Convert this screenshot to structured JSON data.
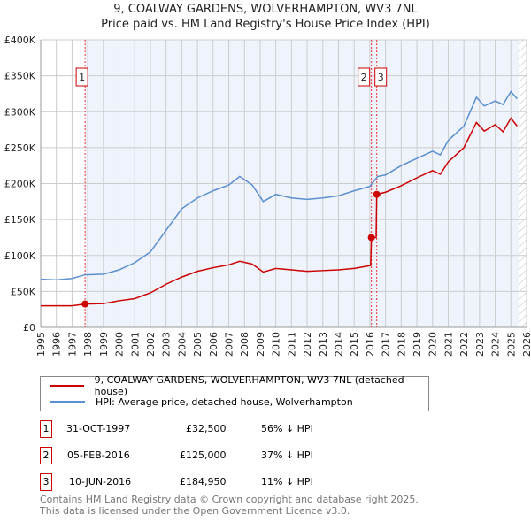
{
  "chart_data": {
    "type": "line",
    "title": "9, COALWAY GARDENS, WOLVERHAMPTON, WV3 7NL",
    "subtitle": "Price paid vs. HM Land Registry's House Price Index (HPI)",
    "xlim": [
      1995,
      2026
    ],
    "ylim": [
      0,
      400000
    ],
    "x_ticks": [
      "1995",
      "1996",
      "1997",
      "1998",
      "1999",
      "2000",
      "2001",
      "2002",
      "2003",
      "2004",
      "2005",
      "2006",
      "2007",
      "2008",
      "2009",
      "2010",
      "2011",
      "2012",
      "2013",
      "2014",
      "2015",
      "2016",
      "2017",
      "2018",
      "2019",
      "2020",
      "2021",
      "2022",
      "2023",
      "2024",
      "2025",
      "2026"
    ],
    "y_ticks": [
      "£0",
      "£50K",
      "£100K",
      "£150K",
      "£200K",
      "£250K",
      "£300K",
      "£350K",
      "£400K"
    ],
    "grid": true,
    "series": [
      {
        "name": "9, COALWAY GARDENS, WOLVERHAMPTON, WV3 7NL (detached house)",
        "color": "#cc0000",
        "x": [
          1995,
          1997,
          1997.83,
          1999,
          2000,
          2001,
          2002,
          2003,
          2004,
          2005,
          2006,
          2007,
          2007.7,
          2008.5,
          2009.2,
          2010,
          2011,
          2012,
          2013,
          2014,
          2015,
          2016.05,
          2016.1,
          2016.4,
          2016.44,
          2017,
          2018,
          2019,
          2020,
          2020.5,
          2021,
          2022,
          2022.8,
          2023.3,
          2024,
          2024.5,
          2025,
          2025.4
        ],
        "y": [
          30000,
          30000,
          32500,
          33000,
          37000,
          40000,
          48000,
          60000,
          70000,
          78000,
          83000,
          87000,
          92000,
          88000,
          77000,
          82000,
          80000,
          78000,
          79000,
          80000,
          82000,
          86000,
          125000,
          125000,
          184950,
          188000,
          197000,
          208000,
          218000,
          213000,
          230000,
          250000,
          285000,
          273000,
          282000,
          272000,
          291000,
          280000
        ]
      },
      {
        "name": "HPI: Average price, detached house, Wolverhampton",
        "color": "#5b8fd0",
        "x": [
          1995,
          1996,
          1997,
          1997.8,
          1999,
          2000,
          2001,
          2002,
          2003,
          2004,
          2005,
          2006,
          2007,
          2007.7,
          2008.5,
          2009.2,
          2010,
          2011,
          2012,
          2013,
          2014,
          2015,
          2016,
          2016.5,
          2017,
          2018,
          2019,
          2020,
          2020.5,
          2021,
          2022,
          2022.8,
          2023.3,
          2024,
          2024.5,
          2025,
          2025.4
        ],
        "y": [
          67000,
          66000,
          68000,
          73000,
          74000,
          80000,
          90000,
          105000,
          135000,
          165000,
          180000,
          190000,
          198000,
          210000,
          198000,
          175000,
          185000,
          180000,
          178000,
          180000,
          183000,
          190000,
          196000,
          210000,
          212000,
          225000,
          235000,
          245000,
          240000,
          260000,
          280000,
          320000,
          308000,
          315000,
          310000,
          328000,
          318000
        ]
      }
    ],
    "sales": [
      {
        "label": "1",
        "x": 1997.83,
        "y": 32500
      },
      {
        "label": "2",
        "x": 2016.1,
        "y": 125000
      },
      {
        "label": "3",
        "x": 2016.44,
        "y": 184950
      }
    ],
    "shaded_range": [
      1997.83,
      2025.5
    ]
  },
  "legend": [
    "9, COALWAY GARDENS, WOLVERHAMPTON, WV3 7NL (detached house)",
    "HPI: Average price, detached house, Wolverhampton"
  ],
  "transactions": [
    {
      "num": "1",
      "date": "31-OCT-1997",
      "price": "£32,500",
      "hpi": "56% ↓ HPI"
    },
    {
      "num": "2",
      "date": "05-FEB-2016",
      "price": "£125,000",
      "hpi": "37% ↓ HPI"
    },
    {
      "num": "3",
      "date": "10-JUN-2016",
      "price": "£184,950",
      "hpi": "11% ↓ HPI"
    }
  ],
  "footer": [
    "Contains HM Land Registry data © Crown copyright and database right 2025.",
    "This data is licensed under the Open Government Licence v3.0."
  ]
}
